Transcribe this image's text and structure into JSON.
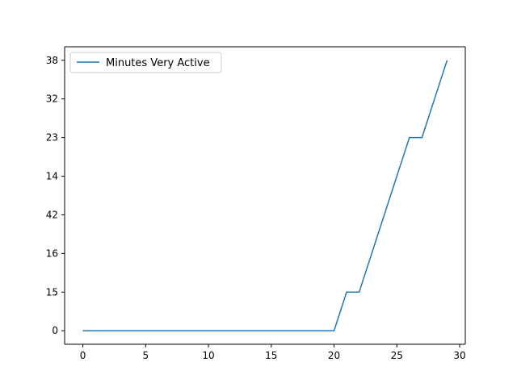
{
  "chart_data": {
    "type": "line",
    "title": "",
    "xlabel": "",
    "ylabel": "",
    "series": [
      {
        "name": "Minutes Very Active",
        "color": "#1f77b4",
        "x": [
          0,
          1,
          2,
          3,
          4,
          5,
          6,
          7,
          8,
          9,
          10,
          11,
          12,
          13,
          14,
          15,
          16,
          17,
          18,
          19,
          20,
          21,
          22,
          23,
          24,
          25,
          26,
          27,
          28,
          29
        ],
        "y": [
          "0",
          "0",
          "0",
          "0",
          "0",
          "0",
          "0",
          "0",
          "0",
          "0",
          "0",
          "0",
          "0",
          "0",
          "0",
          "0",
          "0",
          "0",
          "0",
          "0",
          "0",
          "15",
          "15",
          "16",
          "42",
          "14",
          "23",
          "23",
          "32",
          "38"
        ]
      }
    ],
    "y_categories": [
      "0",
      "15",
      "16",
      "42",
      "14",
      "23",
      "32",
      "38"
    ],
    "x_ticks": [
      "0",
      "5",
      "10",
      "15",
      "20",
      "25",
      "30"
    ],
    "xlim": [
      -1.45,
      30.45
    ],
    "legend": "top-left",
    "grid": false
  }
}
